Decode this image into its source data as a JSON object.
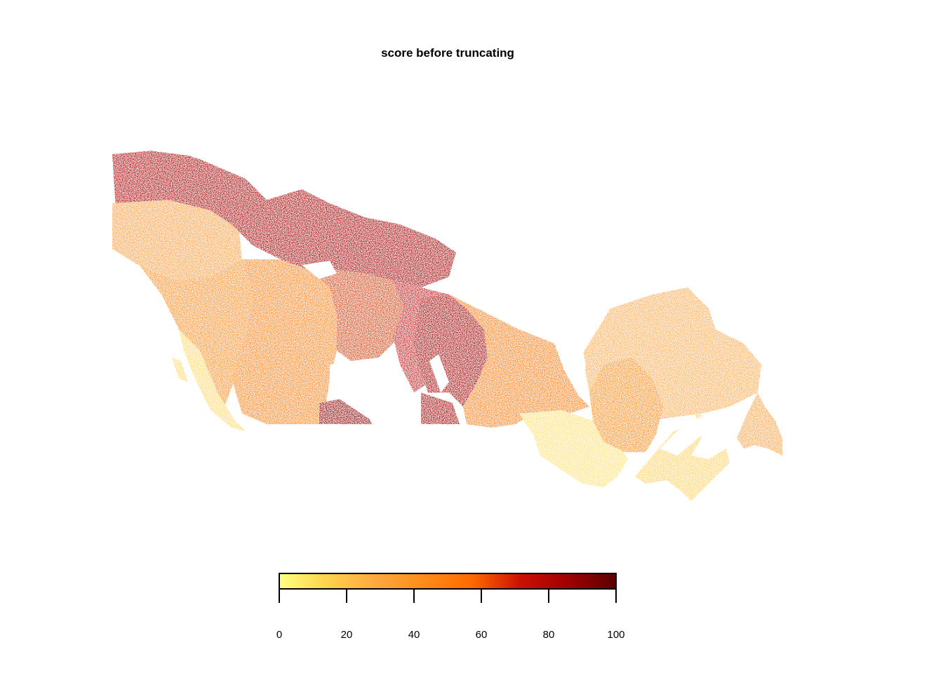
{
  "title": "score before truncating",
  "colors": {
    "ramp": [
      "#ffff80",
      "#ffd24d",
      "#ffa83f",
      "#ff8c1a",
      "#ff6a00",
      "#cc1100",
      "#a00000",
      "#5a0000"
    ],
    "map_regions": {
      "yukon_north": "#a80000",
      "yukon_south": "#ff9a3a",
      "nwt": "#a30000",
      "bc_interior": "#ff8a1e",
      "bc_south": "#ffd866",
      "alberta": "#ff7e14",
      "sask_north": "#d04010",
      "sask_south": "#8a0000",
      "manitoba": "#c01818",
      "manitoba_east": "#a00000",
      "ontario_north": "#ff7a10",
      "ontario_south": "#ffe070",
      "quebec": "#ffa84a",
      "quebec_south": "#ff8a18",
      "maritimes": "#ffd060",
      "newfoundland": "#ffa040"
    }
  },
  "chart_data": {
    "type": "heatmap",
    "title": "score before truncating",
    "colorbar": {
      "min": 0,
      "max": 100,
      "ticks": [
        0,
        20,
        40,
        60,
        80,
        100
      ],
      "tick_labels": [
        "0",
        "20",
        "40",
        "60",
        "80",
        "100"
      ],
      "orientation": "horizontal",
      "placement": "bottom-center"
    }
  }
}
